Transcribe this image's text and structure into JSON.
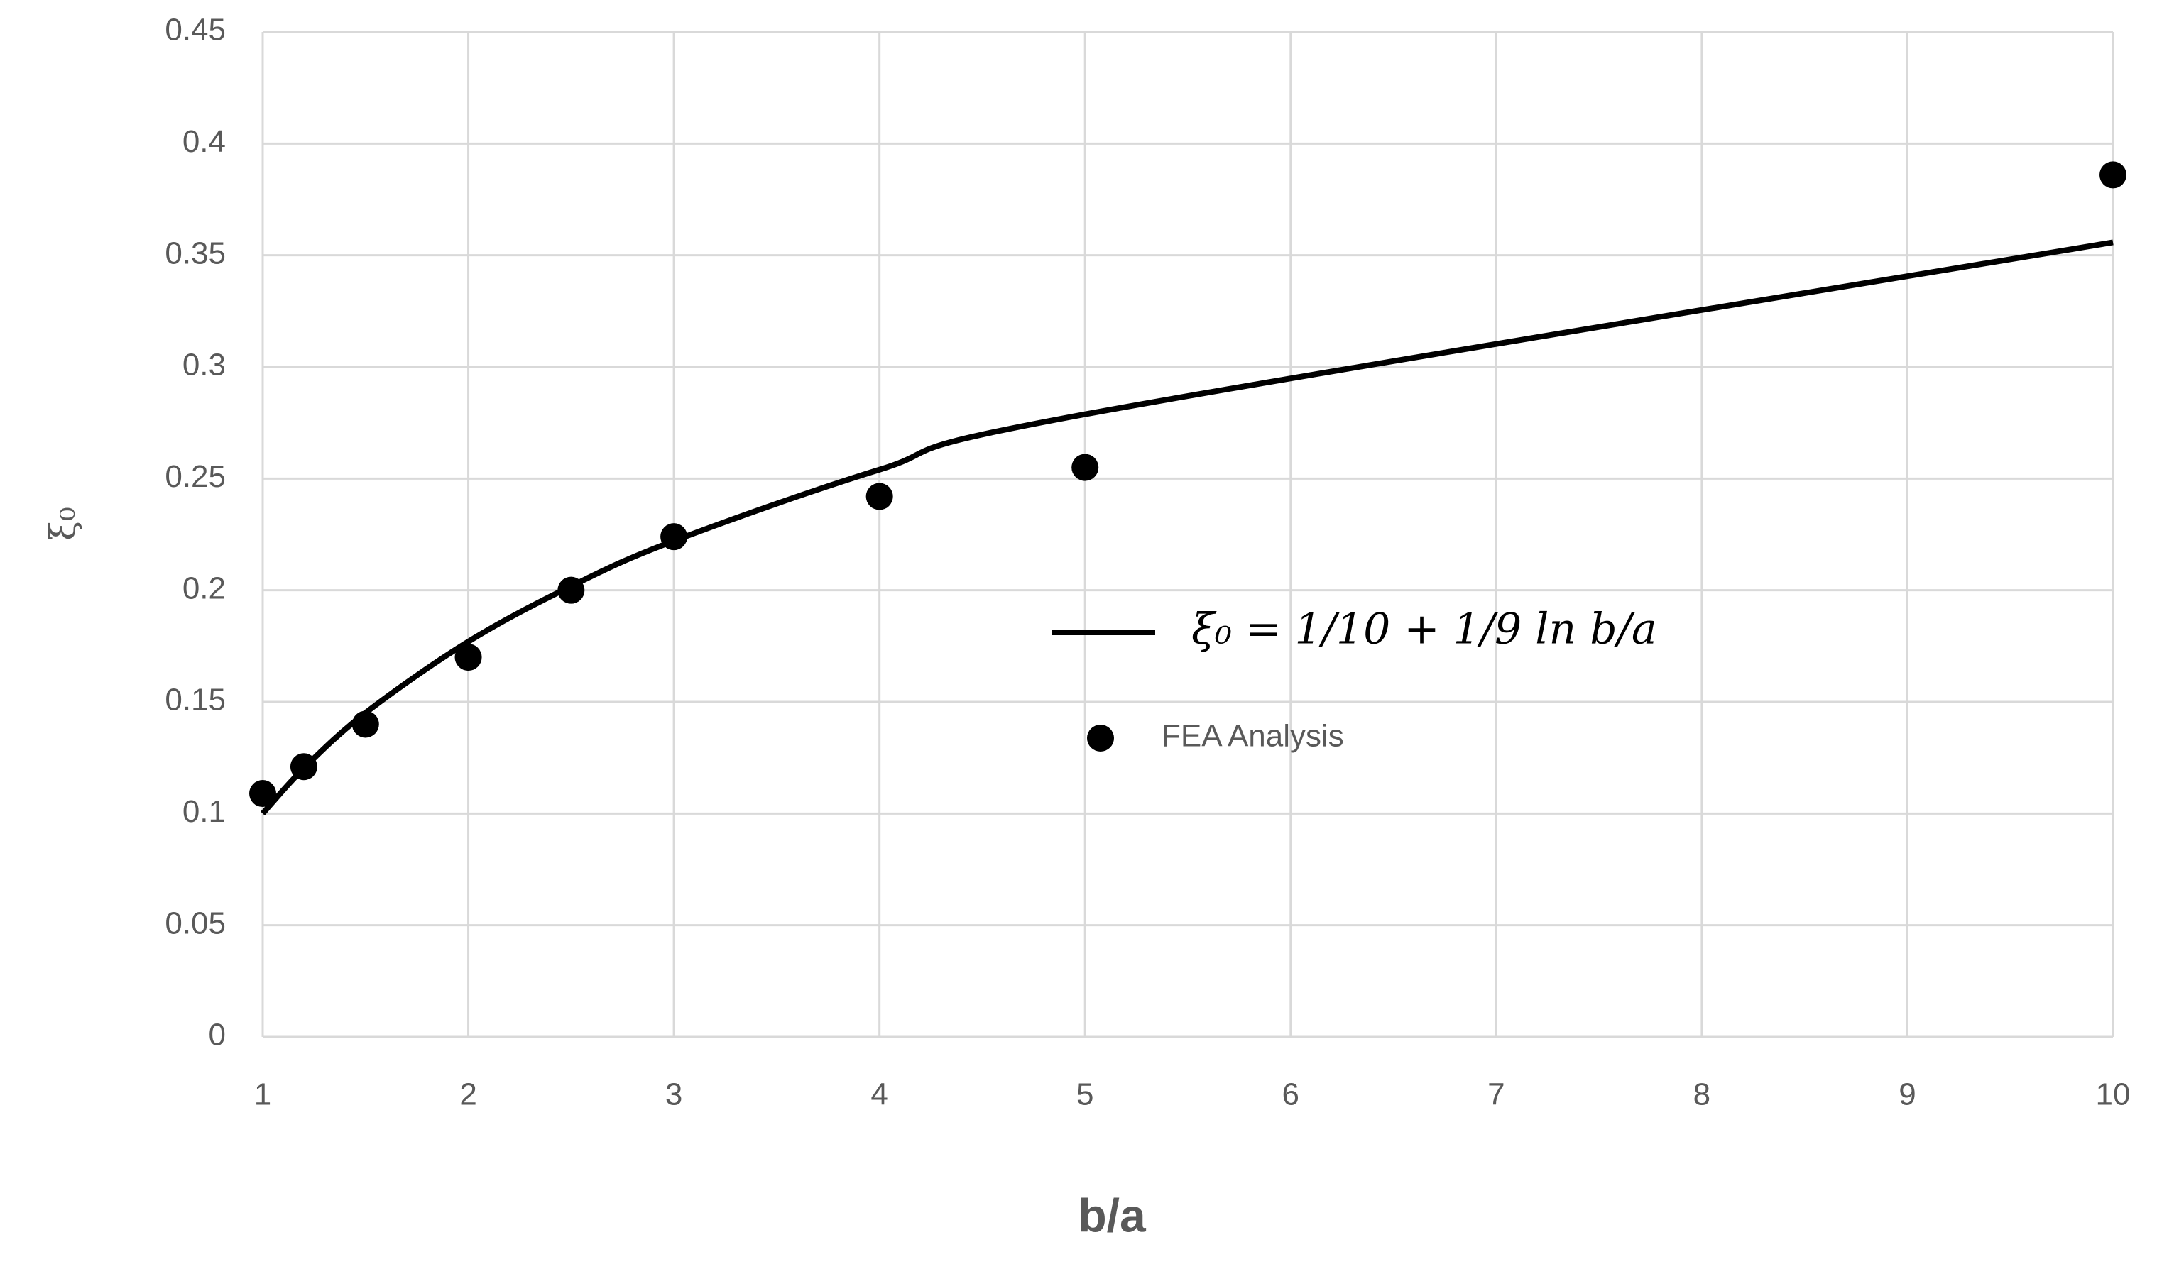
{
  "chart_data": {
    "type": "line",
    "x_label": "b/a",
    "y_label": "ξ₀",
    "xlim": [
      1,
      10
    ],
    "xticks": [
      1,
      2,
      3,
      4,
      5,
      6,
      7,
      8,
      9,
      10
    ],
    "ylim": [
      0,
      0.45
    ],
    "yticks": [
      0,
      0.05,
      0.1,
      0.15,
      0.2,
      0.25,
      0.3,
      0.35,
      0.4,
      0.45
    ],
    "grid": true,
    "series": [
      {
        "name": "ξ₀ = 1/10 + 1/9 ln b/a",
        "type": "line",
        "color": "#000000",
        "x": [
          1,
          1.2,
          1.5,
          2,
          2.5,
          3,
          4,
          5,
          10
        ],
        "values": [
          0.1,
          0.1203,
          0.1451,
          0.177,
          0.2018,
          0.2221,
          0.254,
          0.2788,
          0.3558
        ]
      },
      {
        "name": "FEA Analysis",
        "type": "scatter",
        "color": "#000000",
        "x": [
          1,
          1.2,
          1.5,
          2,
          2.5,
          3,
          4,
          5,
          10
        ],
        "values": [
          0.109,
          0.121,
          0.14,
          0.17,
          0.2,
          0.224,
          0.242,
          0.255,
          0.386
        ]
      }
    ]
  }
}
